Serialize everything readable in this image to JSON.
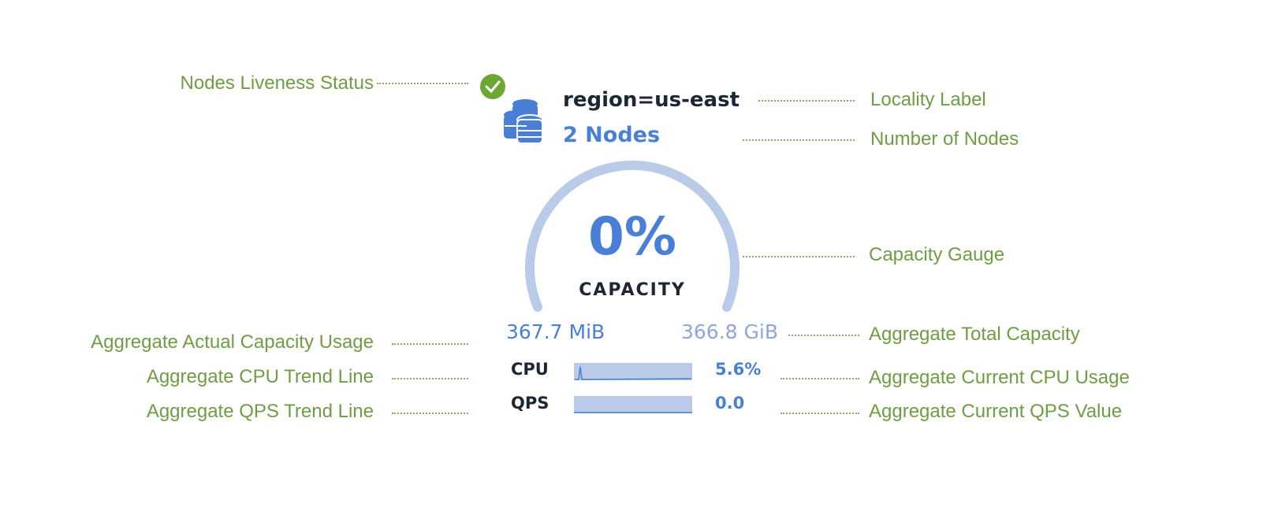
{
  "component": {
    "liveness_icon": "check-circle-icon",
    "nodes_icon": "database-stack-icon",
    "locality": "region=us-east",
    "node_count": "2 Nodes",
    "capacity_percent": "0%",
    "capacity_label": "CAPACITY",
    "capacity_fraction": 0.0,
    "used": "367.7 MiB",
    "total": "366.8 GiB",
    "cpu_label": "CPU",
    "cpu_value": "5.6%",
    "qps_label": "QPS",
    "qps_value": "0.0"
  },
  "annotations": {
    "liveness": "Nodes Liveness Status",
    "locality": "Locality Label",
    "node_count": "Number of Nodes",
    "gauge": "Capacity Gauge",
    "actual_usage": "Aggregate Actual Capacity Usage",
    "total_capacity": "Aggregate Total Capacity",
    "cpu_trend": "Aggregate CPU Trend Line",
    "cpu_current": "Aggregate Current CPU Usage",
    "qps_trend": "Aggregate QPS Trend Line",
    "qps_current": "Aggregate Current QPS Value"
  },
  "colors": {
    "annotation": "#6f9d43",
    "accent": "#4a7fd8",
    "gauge": "#b9cbe9",
    "check": "#6aa832"
  }
}
